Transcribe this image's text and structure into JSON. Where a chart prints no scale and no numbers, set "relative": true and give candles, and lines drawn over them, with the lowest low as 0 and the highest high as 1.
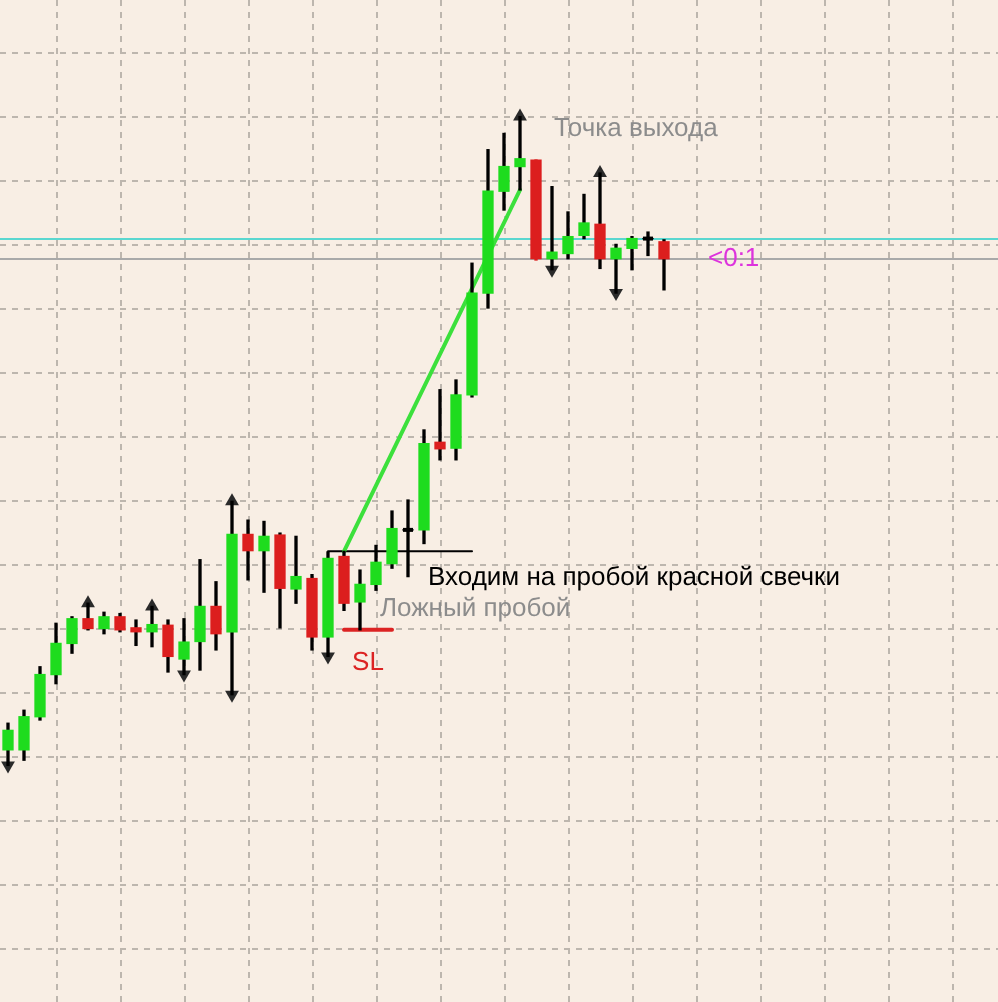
{
  "chart_data": {
    "type": "candlestick",
    "relative": true,
    "tick_labels": false,
    "grid": true,
    "categories": [
      null,
      null,
      null,
      null,
      null,
      null,
      null,
      null,
      null,
      null,
      null,
      null,
      null,
      null,
      null,
      null,
      null,
      null,
      null,
      null,
      null,
      null,
      null,
      null,
      null,
      null,
      null,
      null,
      null,
      null,
      null,
      null,
      null,
      null,
      null,
      null,
      null,
      null,
      null,
      null,
      null,
      null
    ],
    "ohlc": [
      [
        0.024,
        0.065,
        0,
        0.054
      ],
      [
        0.024,
        0.085,
        0.008,
        0.075
      ],
      [
        0.075,
        0.152,
        0.07,
        0.14
      ],
      [
        0.14,
        0.219,
        0.126,
        0.188
      ],
      [
        0.188,
        0.229,
        0.173,
        0.226
      ],
      [
        0.226,
        0.25,
        0.209,
        0.211
      ],
      [
        0.211,
        0.236,
        0.203,
        0.229
      ],
      [
        0.229,
        0.234,
        0.206,
        0.209
      ],
      [
        0.212,
        0.224,
        0.185,
        0.206
      ],
      [
        0.206,
        0.245,
        0.183,
        0.217
      ],
      [
        0.216,
        0.224,
        0.144,
        0.168
      ],
      [
        0.164,
        0.226,
        0.14,
        0.19
      ],
      [
        0.191,
        0.317,
        0.147,
        0.245
      ],
      [
        0.245,
        0.283,
        0.178,
        0.203
      ],
      [
        0.206,
        0.407,
        0.109,
        0.356
      ],
      [
        0.356,
        0.378,
        0.286,
        0.331
      ],
      [
        0.331,
        0.376,
        0.267,
        0.353
      ],
      [
        0.355,
        0.358,
        0.212,
        0.273
      ],
      [
        0.272,
        0.353,
        0.25,
        0.291
      ],
      [
        0.288,
        0.294,
        0.178,
        0.198
      ],
      [
        0.198,
        0.329,
        0.168,
        0.319
      ],
      [
        0.322,
        0.33,
        0.239,
        0.25
      ],
      [
        0.252,
        0.301,
        0.209,
        0.279
      ],
      [
        0.279,
        0.339,
        0.27,
        0.313
      ],
      [
        0.311,
        0.392,
        0.304,
        0.365
      ],
      [
        0.363,
        0.409,
        0.291,
        0.363
      ],
      [
        0.363,
        0.517,
        0.342,
        0.496
      ],
      [
        0.498,
        0.579,
        0.471,
        0.488
      ],
      [
        0.489,
        0.594,
        0.471,
        0.571
      ],
      [
        0.571,
        0.774,
        0.568,
        0.728
      ],
      [
        0.728,
        0.949,
        0.705,
        0.885
      ],
      [
        0.885,
        0.974,
        0.856,
        0.923
      ],
      [
        0.923,
        1,
        0.887,
        0.935
      ],
      [
        0.933,
        0.933,
        0.779,
        0.781
      ],
      [
        0.781,
        0.892,
        0.764,
        0.791
      ],
      [
        0.789,
        0.853,
        0.781,
        0.815
      ],
      [
        0.817,
        0.88,
        0.812,
        0.836
      ],
      [
        0.834,
        0.913,
        0.766,
        0.781
      ],
      [
        0.781,
        0.803,
        0.728,
        0.797
      ],
      [
        0.797,
        0.815,
        0.764,
        0.812
      ],
      [
        0.812,
        0.822,
        0.786,
        0.812
      ],
      [
        0.807,
        0.81,
        0.733,
        0.781
      ]
    ],
    "colors": [
      "#1edc1e",
      "#1edc1e",
      "#1edc1e",
      "#1edc1e",
      "#1edc1e",
      "#dc1e1e",
      "#1edc1e",
      "#dc1e1e",
      "#dc1e1e",
      "#1edc1e",
      "#dc1e1e",
      "#1edc1e",
      "#1edc1e",
      "#dc1e1e",
      "#1edc1e",
      "#dc1e1e",
      "#1edc1e",
      "#dc1e1e",
      "#1edc1e",
      "#dc1e1e",
      "#1edc1e",
      "#dc1e1e",
      "#1edc1e",
      "#1edc1e",
      "#1edc1e",
      "#000000",
      "#1edc1e",
      "#dc1e1e",
      "#1edc1e",
      "#1edc1e",
      "#1edc1e",
      "#1edc1e",
      "#1edc1e",
      "#dc1e1e",
      "#1edc1e",
      "#1edc1e",
      "#1edc1e",
      "#dc1e1e",
      "#1edc1e",
      "#1edc1e",
      "#000000",
      "#dc1e1e"
    ],
    "series": [
      {
        "type": "line",
        "color": "#3ce03c",
        "values": [
          null,
          null,
          null,
          null,
          null,
          null,
          null,
          null,
          null,
          null,
          null,
          null,
          null,
          null,
          null,
          null,
          null,
          null,
          null,
          null,
          null,
          0.33,
          null,
          null,
          null,
          null,
          null,
          null,
          null,
          null,
          null,
          null,
          0.887,
          null,
          null,
          null,
          null,
          null,
          null,
          null,
          null,
          null
        ]
      },
      {
        "type": "line",
        "name": "Входим на пробой красной свечки",
        "color": "#000000",
        "values": [
          null,
          null,
          null,
          null,
          null,
          null,
          null,
          null,
          null,
          null,
          null,
          null,
          null,
          null,
          null,
          null,
          null,
          null,
          null,
          null,
          0.33,
          0.33,
          0.33,
          0.33,
          0.33,
          0.33,
          0.33,
          0.33,
          0.33,
          0.33,
          null,
          null,
          null,
          null,
          null,
          null,
          null,
          null,
          null,
          null,
          null,
          null
        ]
      },
      {
        "type": "line",
        "name": "SL",
        "color": "#dc2323",
        "values": [
          null,
          null,
          null,
          null,
          null,
          null,
          null,
          null,
          null,
          null,
          null,
          null,
          null,
          null,
          null,
          null,
          null,
          null,
          null,
          null,
          null,
          0.209,
          0.209,
          0.209,
          0.209,
          null,
          null,
          null,
          null,
          null,
          null,
          null,
          null,
          null,
          null,
          null,
          null,
          null,
          null,
          null,
          null,
          null
        ]
      },
      {
        "type": "scatter",
        "marker": "triangle",
        "color": "#2a2a2a",
        "values": [
          null,
          null,
          null,
          null,
          null,
          0.25,
          null,
          null,
          null,
          0.245,
          null,
          null,
          null,
          null,
          0.407,
          null,
          null,
          null,
          null,
          null,
          null,
          null,
          null,
          null,
          null,
          null,
          null,
          null,
          null,
          null,
          null,
          null,
          1,
          null,
          null,
          null,
          null,
          0.913,
          null,
          null,
          null,
          null
        ]
      },
      {
        "type": "scatter",
        "marker": "triangle",
        "color": "#2a2a2a",
        "values": [
          0,
          null,
          null,
          null,
          null,
          null,
          null,
          null,
          null,
          null,
          null,
          0.14,
          null,
          null,
          0.109,
          null,
          null,
          null,
          null,
          null,
          0.168,
          null,
          null,
          null,
          null,
          null,
          null,
          null,
          null,
          null,
          null,
          null,
          null,
          null,
          0.764,
          null,
          null,
          null,
          0.728,
          null,
          null,
          null
        ]
      }
    ],
    "ref_lines": [
      {
        "axis": "y",
        "value": 0.813,
        "color": "#5ad7d0"
      },
      {
        "axis": "y",
        "value": 0.781,
        "color": "#a9a9a9"
      }
    ],
    "annotations": [
      "Точка выхода",
      "Ложный пробой",
      {
        "text": "<0:1",
        "y": 0.781
      }
    ]
  }
}
